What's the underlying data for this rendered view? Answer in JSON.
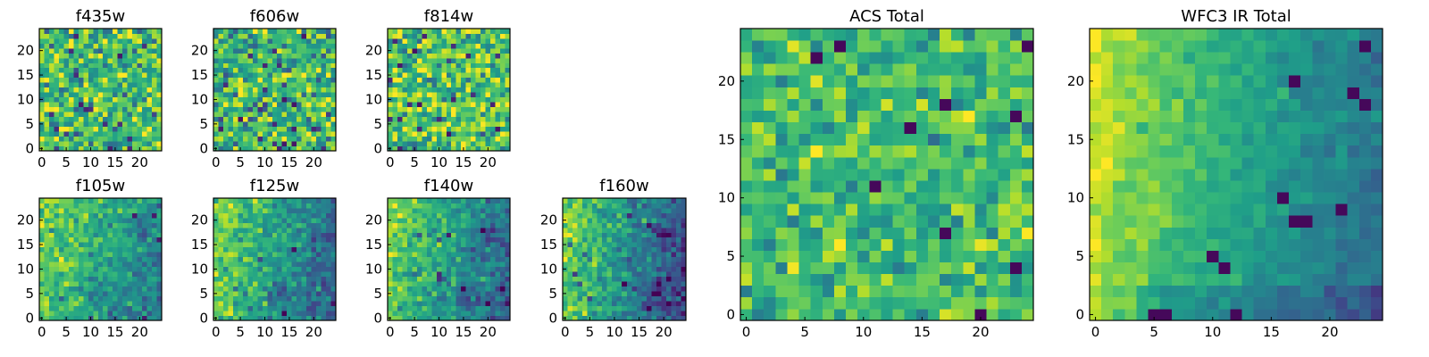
{
  "figure": {
    "colormap": "viridis",
    "colormap_stops": [
      "#440154",
      "#482878",
      "#3e4989",
      "#31688e",
      "#26828e",
      "#1f9e89",
      "#35b779",
      "#6ece58",
      "#b5de2b",
      "#fde725"
    ],
    "frame_color": "#000000",
    "background": "#ffffff"
  },
  "chart_data": [
    {
      "type": "heatmap",
      "title": "f435w",
      "grid": [
        25,
        25
      ],
      "xlim": [
        -0.5,
        24.5
      ],
      "ylim": [
        -0.5,
        24.5
      ],
      "xticks": [
        "0",
        "5",
        "10",
        "15",
        "20"
      ],
      "yticks": [
        "0",
        "5",
        "10",
        "15",
        "20"
      ],
      "value_range": [
        0,
        1
      ],
      "trend": "uniform noise, mean≈0.68, sd≈0.18"
    },
    {
      "type": "heatmap",
      "title": "f606w",
      "grid": [
        25,
        25
      ],
      "xlim": [
        -0.5,
        24.5
      ],
      "ylim": [
        -0.5,
        24.5
      ],
      "xticks": [
        "0",
        "5",
        "10",
        "15",
        "20"
      ],
      "yticks": [
        "0",
        "5",
        "10",
        "15",
        "20"
      ],
      "value_range": [
        0,
        1
      ],
      "trend": "uniform noise, mean≈0.66, sd≈0.18"
    },
    {
      "type": "heatmap",
      "title": "f814w",
      "grid": [
        25,
        25
      ],
      "xlim": [
        -0.5,
        24.5
      ],
      "ylim": [
        -0.5,
        24.5
      ],
      "xticks": [
        "0",
        "5",
        "10",
        "15",
        "20"
      ],
      "yticks": [
        "0",
        "5",
        "10",
        "15",
        "20"
      ],
      "value_range": [
        0,
        1
      ],
      "trend": "uniform noise, mean≈0.72, sd≈0.17"
    },
    {
      "type": "heatmap",
      "title": "f105w",
      "grid": [
        25,
        25
      ],
      "xlim": [
        -0.5,
        24.5
      ],
      "ylim": [
        -0.5,
        24.5
      ],
      "xticks": [
        "0",
        "5",
        "10",
        "15",
        "20"
      ],
      "yticks": [
        "0",
        "5",
        "10",
        "15",
        "20"
      ],
      "value_range": [
        0,
        1
      ],
      "trend": "bright towards upper-left, dimmer towards right/bottom"
    },
    {
      "type": "heatmap",
      "title": "f125w",
      "grid": [
        25,
        25
      ],
      "xlim": [
        -0.5,
        24.5
      ],
      "ylim": [
        -0.5,
        24.5
      ],
      "xticks": [
        "0",
        "5",
        "10",
        "15",
        "20"
      ],
      "yticks": [
        "0",
        "5",
        "10",
        "15",
        "20"
      ],
      "value_range": [
        0,
        1
      ],
      "trend": "bright towards left, dark clumps lower-middle"
    },
    {
      "type": "heatmap",
      "title": "f140w",
      "grid": [
        25,
        25
      ],
      "xlim": [
        -0.5,
        24.5
      ],
      "ylim": [
        -0.5,
        24.5
      ],
      "xticks": [
        "0",
        "5",
        "10",
        "15",
        "20"
      ],
      "yticks": [
        "0",
        "5",
        "10",
        "15",
        "20"
      ],
      "value_range": [
        0,
        1
      ],
      "trend": "bright towards left, dimmer towards right"
    },
    {
      "type": "heatmap",
      "title": "f160w",
      "grid": [
        25,
        25
      ],
      "xlim": [
        -0.5,
        24.5
      ],
      "ylim": [
        -0.5,
        24.5
      ],
      "xticks": [
        "0",
        "5",
        "10",
        "15",
        "20"
      ],
      "yticks": [
        "0",
        "5",
        "10",
        "15",
        "20"
      ],
      "value_range": [
        0,
        1
      ],
      "trend": "bright left edge, dark clumps lower-middle and right"
    },
    {
      "type": "heatmap",
      "title": "ACS Total",
      "grid": [
        25,
        25
      ],
      "xlim": [
        -0.5,
        24.5
      ],
      "ylim": [
        -0.5,
        24.5
      ],
      "xticks": [
        "0",
        "5",
        "10",
        "15",
        "20"
      ],
      "yticks": [
        "0",
        "5",
        "10",
        "15",
        "20"
      ],
      "value_range": [
        0,
        1
      ],
      "trend": "mostly green-yellow noise with scattered dark pixels",
      "dark_pixels": [
        [
          24,
          23
        ],
        [
          6,
          22
        ],
        [
          14,
          16
        ],
        [
          17,
          18
        ],
        [
          11,
          11
        ],
        [
          17,
          7
        ],
        [
          20,
          0
        ],
        [
          23,
          4
        ],
        [
          23,
          17
        ],
        [
          8,
          23
        ]
      ]
    },
    {
      "type": "heatmap",
      "title": "WFC3 IR Total",
      "grid": [
        25,
        25
      ],
      "xlim": [
        -0.5,
        24.5
      ],
      "ylim": [
        -0.5,
        24.5
      ],
      "xticks": [
        "0",
        "5",
        "10",
        "15",
        "20"
      ],
      "yticks": [
        "0",
        "5",
        "10",
        "15",
        "20"
      ],
      "value_range": [
        0,
        1
      ],
      "trend": "yellow on left edge fading to teal/blue on right",
      "dark_pixels": [
        [
          17,
          8
        ],
        [
          18,
          8
        ],
        [
          16,
          10
        ],
        [
          17,
          20
        ],
        [
          22,
          19
        ],
        [
          23,
          18
        ],
        [
          11,
          4
        ],
        [
          12,
          0
        ],
        [
          5,
          0
        ],
        [
          6,
          0
        ],
        [
          23,
          23
        ],
        [
          10,
          5
        ],
        [
          21,
          9
        ]
      ]
    }
  ]
}
